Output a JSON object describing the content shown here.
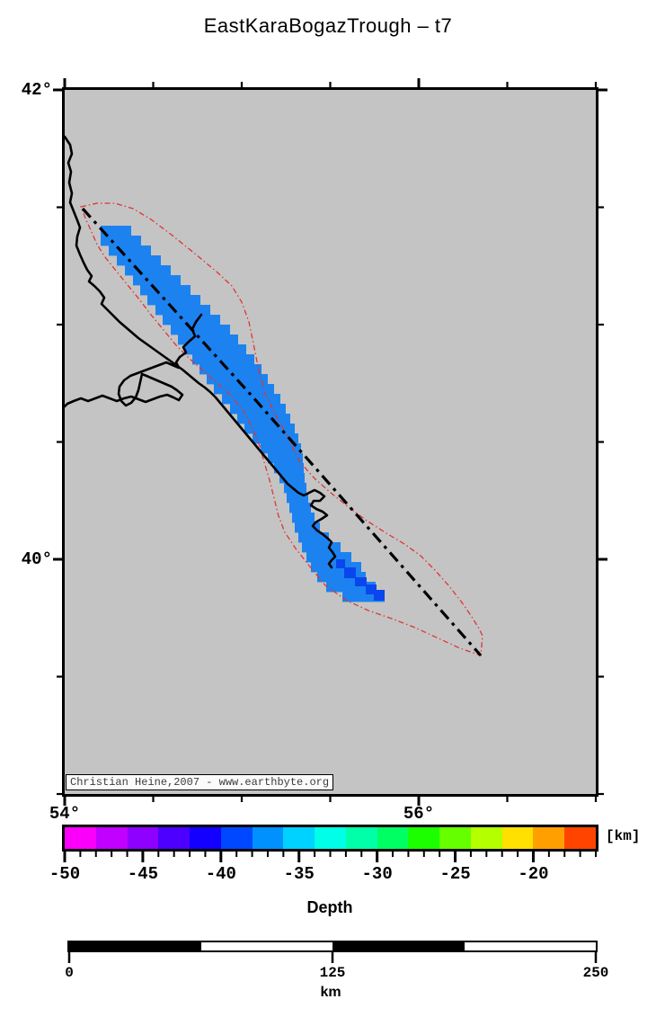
{
  "title": "EastKaraBogazTrough – t7",
  "map": {
    "background_color": "#c4c4c4",
    "attribution": "Christian Heine,2007 - www.earthbyte.org",
    "lon_range": [
      54,
      57
    ],
    "lat_range": [
      39,
      42
    ],
    "lat_ticks": [
      {
        "value": 42,
        "label": "42°"
      },
      {
        "value": 41.5
      },
      {
        "value": 41
      },
      {
        "value": 40.5
      },
      {
        "value": 40,
        "label": "40°"
      },
      {
        "value": 39.5
      },
      {
        "value": 39
      }
    ],
    "lon_ticks": [
      {
        "value": 54,
        "label": "54°"
      },
      {
        "value": 54.5
      },
      {
        "value": 55
      },
      {
        "value": 55.5
      },
      {
        "value": 56,
        "label": "56°"
      },
      {
        "value": 56.5
      },
      {
        "value": 57
      }
    ],
    "colors": {
      "coastline": "#000000",
      "study_area_outline": "#e03434",
      "trend_line": "#000000",
      "depth_shallow_fill": "#1c82f0",
      "depth_deep_fill": "#0a46ee"
    },
    "geometry": {
      "coastline": [
        [
          [
            72,
            152
          ],
          [
            78,
            161
          ],
          [
            80,
            171
          ],
          [
            76,
            181
          ],
          [
            79,
            191
          ],
          [
            77,
            203
          ],
          [
            80,
            215
          ],
          [
            78,
            225
          ],
          [
            82,
            235
          ],
          [
            86,
            245
          ],
          [
            89,
            253
          ],
          [
            86,
            263
          ],
          [
            85,
            273
          ],
          [
            89,
            283
          ],
          [
            93,
            292
          ],
          [
            97,
            300
          ],
          [
            102,
            307
          ],
          [
            99,
            313
          ],
          [
            105,
            318
          ],
          [
            111,
            324
          ],
          [
            116,
            331
          ],
          [
            113,
            338
          ],
          [
            119,
            344
          ],
          [
            126,
            351
          ],
          [
            133,
            358
          ],
          [
            140,
            364
          ],
          [
            147,
            370
          ],
          [
            154,
            376
          ],
          [
            161,
            381
          ],
          [
            168,
            386
          ],
          [
            175,
            391
          ],
          [
            182,
            396
          ],
          [
            189,
            401
          ],
          [
            196,
            406
          ],
          [
            203,
            411
          ],
          [
            209,
            416
          ],
          [
            215,
            421
          ],
          [
            221,
            426
          ],
          [
            228,
            431
          ],
          [
            234,
            436
          ],
          [
            240,
            442
          ],
          [
            245,
            448
          ],
          [
            250,
            454
          ],
          [
            255,
            460
          ],
          [
            260,
            466
          ],
          [
            265,
            472
          ],
          [
            270,
            478
          ],
          [
            275,
            484
          ],
          [
            280,
            490
          ],
          [
            285,
            496
          ],
          [
            290,
            502
          ],
          [
            295,
            508
          ],
          [
            300,
            514
          ],
          [
            305,
            520
          ],
          [
            310,
            526
          ],
          [
            315,
            532
          ],
          [
            320,
            538
          ],
          [
            326,
            543
          ],
          [
            332,
            548
          ],
          [
            338,
            551
          ],
          [
            344,
            548
          ],
          [
            350,
            545
          ],
          [
            356,
            548
          ],
          [
            361,
            552
          ],
          [
            356,
            557
          ],
          [
            349,
            557
          ],
          [
            346,
            562
          ],
          [
            352,
            566
          ],
          [
            359,
            569
          ],
          [
            364,
            573
          ],
          [
            358,
            577
          ],
          [
            351,
            581
          ],
          [
            348,
            585
          ],
          [
            353,
            590
          ],
          [
            359,
            594
          ],
          [
            365,
            599
          ],
          [
            369,
            603
          ],
          [
            366,
            609
          ],
          [
            370,
            614
          ],
          [
            373,
            619
          ],
          [
            369,
            623
          ],
          [
            366,
            627
          ],
          [
            369,
            631
          ]
        ],
        [
          [
            224,
            350
          ],
          [
            218,
            358
          ],
          [
            214,
            366
          ],
          [
            217,
            374
          ],
          [
            210,
            380
          ],
          [
            204,
            386
          ],
          [
            207,
            392
          ],
          [
            200,
            397
          ],
          [
            196,
            403
          ],
          [
            199,
            409
          ],
          [
            192,
            406
          ],
          [
            185,
            403
          ],
          [
            177,
            406
          ],
          [
            169,
            409
          ],
          [
            161,
            412
          ],
          [
            153,
            415
          ],
          [
            145,
            418
          ],
          [
            138,
            423
          ],
          [
            133,
            430
          ],
          [
            132,
            438
          ],
          [
            135,
            446
          ],
          [
            140,
            451
          ],
          [
            146,
            448
          ],
          [
            151,
            442
          ],
          [
            154,
            434
          ],
          [
            156,
            425
          ],
          [
            158,
            416
          ],
          [
            163,
            418
          ],
          [
            170,
            421
          ],
          [
            177,
            424
          ],
          [
            184,
            427
          ],
          [
            191,
            430
          ],
          [
            197,
            434
          ],
          [
            203,
            439
          ],
          [
            199,
            445
          ],
          [
            193,
            442
          ],
          [
            186,
            439
          ],
          [
            178,
            441
          ],
          [
            170,
            444
          ],
          [
            162,
            447
          ],
          [
            154,
            444
          ],
          [
            146,
            441
          ],
          [
            138,
            443
          ],
          [
            130,
            446
          ],
          [
            122,
            443
          ],
          [
            114,
            440
          ],
          [
            106,
            443
          ],
          [
            98,
            446
          ],
          [
            90,
            443
          ],
          [
            82,
            446
          ],
          [
            75,
            449
          ],
          [
            72,
            452
          ]
        ]
      ],
      "study_area_outline": [
        [
          90,
          230
        ],
        [
          108,
          226
        ],
        [
          128,
          226
        ],
        [
          148,
          232
        ],
        [
          168,
          244
        ],
        [
          192,
          262
        ],
        [
          218,
          283
        ],
        [
          242,
          303
        ],
        [
          258,
          318
        ],
        [
          269,
          336
        ],
        [
          277,
          358
        ],
        [
          282,
          382
        ],
        [
          288,
          412
        ],
        [
          296,
          440
        ],
        [
          306,
          460
        ],
        [
          316,
          478
        ],
        [
          324,
          494
        ],
        [
          333,
          513
        ],
        [
          350,
          532
        ],
        [
          368,
          548
        ],
        [
          388,
          564
        ],
        [
          408,
          579
        ],
        [
          430,
          593
        ],
        [
          450,
          605
        ],
        [
          468,
          618
        ],
        [
          484,
          634
        ],
        [
          500,
          652
        ],
        [
          514,
          670
        ],
        [
          525,
          686
        ],
        [
          533,
          699
        ],
        [
          537,
          707
        ],
        [
          536,
          718
        ],
        [
          535,
          729
        ],
        [
          512,
          721
        ],
        [
          488,
          710
        ],
        [
          462,
          698
        ],
        [
          436,
          688
        ],
        [
          410,
          679
        ],
        [
          386,
          668
        ],
        [
          362,
          651
        ],
        [
          344,
          629
        ],
        [
          329,
          610
        ],
        [
          317,
          592
        ],
        [
          310,
          574
        ],
        [
          305,
          554
        ],
        [
          300,
          534
        ],
        [
          294,
          514
        ],
        [
          289,
          496
        ],
        [
          281,
          476
        ],
        [
          271,
          457
        ],
        [
          258,
          441
        ],
        [
          243,
          427
        ],
        [
          227,
          413
        ],
        [
          211,
          399
        ],
        [
          196,
          384
        ],
        [
          182,
          367
        ],
        [
          168,
          350
        ],
        [
          155,
          333
        ],
        [
          142,
          317
        ],
        [
          129,
          301
        ],
        [
          117,
          286
        ],
        [
          108,
          272
        ],
        [
          102,
          258
        ],
        [
          96,
          245
        ]
      ],
      "trend_line": [
        [
          92,
          232
        ],
        [
          280,
          440
        ],
        [
          535,
          729
        ]
      ],
      "depth_band_rows": [
        [
          251,
          112,
          146
        ],
        [
          262,
          112,
          157
        ],
        [
          273,
          121,
          168
        ],
        [
          284,
          130,
          179
        ],
        [
          295,
          139,
          190
        ],
        [
          306,
          148,
          201
        ],
        [
          317,
          156,
          212
        ],
        [
          328,
          164,
          223
        ],
        [
          339,
          173,
          234
        ],
        [
          350,
          181,
          245
        ],
        [
          361,
          190,
          256
        ],
        [
          372,
          198,
          265
        ],
        [
          383,
          206,
          274
        ],
        [
          394,
          214,
          283
        ],
        [
          405,
          222,
          291
        ],
        [
          416,
          230,
          298
        ],
        [
          427,
          238,
          305
        ],
        [
          438,
          247,
          312
        ],
        [
          449,
          256,
          318
        ],
        [
          460,
          264,
          323
        ],
        [
          471,
          272,
          328
        ],
        [
          482,
          281,
          332
        ],
        [
          493,
          290,
          335
        ],
        [
          504,
          298,
          337
        ],
        [
          515,
          305,
          338
        ],
        [
          526,
          311,
          339
        ],
        [
          537,
          316,
          341
        ],
        [
          548,
          319,
          343
        ],
        [
          559,
          322,
          346
        ],
        [
          570,
          325,
          350
        ],
        [
          581,
          328,
          356
        ],
        [
          592,
          332,
          366
        ],
        [
          603,
          336,
          379
        ],
        [
          614,
          341,
          391
        ],
        [
          625,
          346,
          402
        ],
        [
          636,
          353,
          407
        ],
        [
          647,
          363,
          418
        ],
        [
          658,
          381,
          428
        ]
      ],
      "depth_deep_cells": [
        [
          374,
          622,
          10,
          10
        ],
        [
          383,
          631,
          13,
          12
        ],
        [
          395,
          642,
          13,
          10
        ],
        [
          407,
          650,
          12,
          11
        ],
        [
          416,
          656,
          12,
          12
        ]
      ]
    }
  },
  "colorbar": {
    "title": "Depth",
    "unit": "[km]",
    "range_km": [
      -50,
      -16
    ],
    "segment_width_km": 2,
    "colors": [
      "#fa00fa",
      "#c100ff",
      "#8e00ff",
      "#4c00ff",
      "#1400ff",
      "#0048ff",
      "#0091ff",
      "#00d2ff",
      "#00ffe6",
      "#00ffa8",
      "#00ff62",
      "#1cff00",
      "#66ff00",
      "#b4ff00",
      "#ffe000",
      "#ffa000",
      "#ff4400"
    ],
    "major_tick_values": [
      -50,
      -45,
      -40,
      -35,
      -30,
      -25,
      -20
    ],
    "major_tick_labels": [
      "-50",
      "-45",
      "-40",
      "-35",
      "-30",
      "-25",
      "-20"
    ],
    "minor_tick_interval_km": 1
  },
  "scalebar": {
    "labels": [
      "0",
      "125",
      "250"
    ],
    "label_values_km": [
      0,
      125,
      250
    ],
    "unit_label": "km",
    "total_km": 250,
    "segments": 4
  }
}
